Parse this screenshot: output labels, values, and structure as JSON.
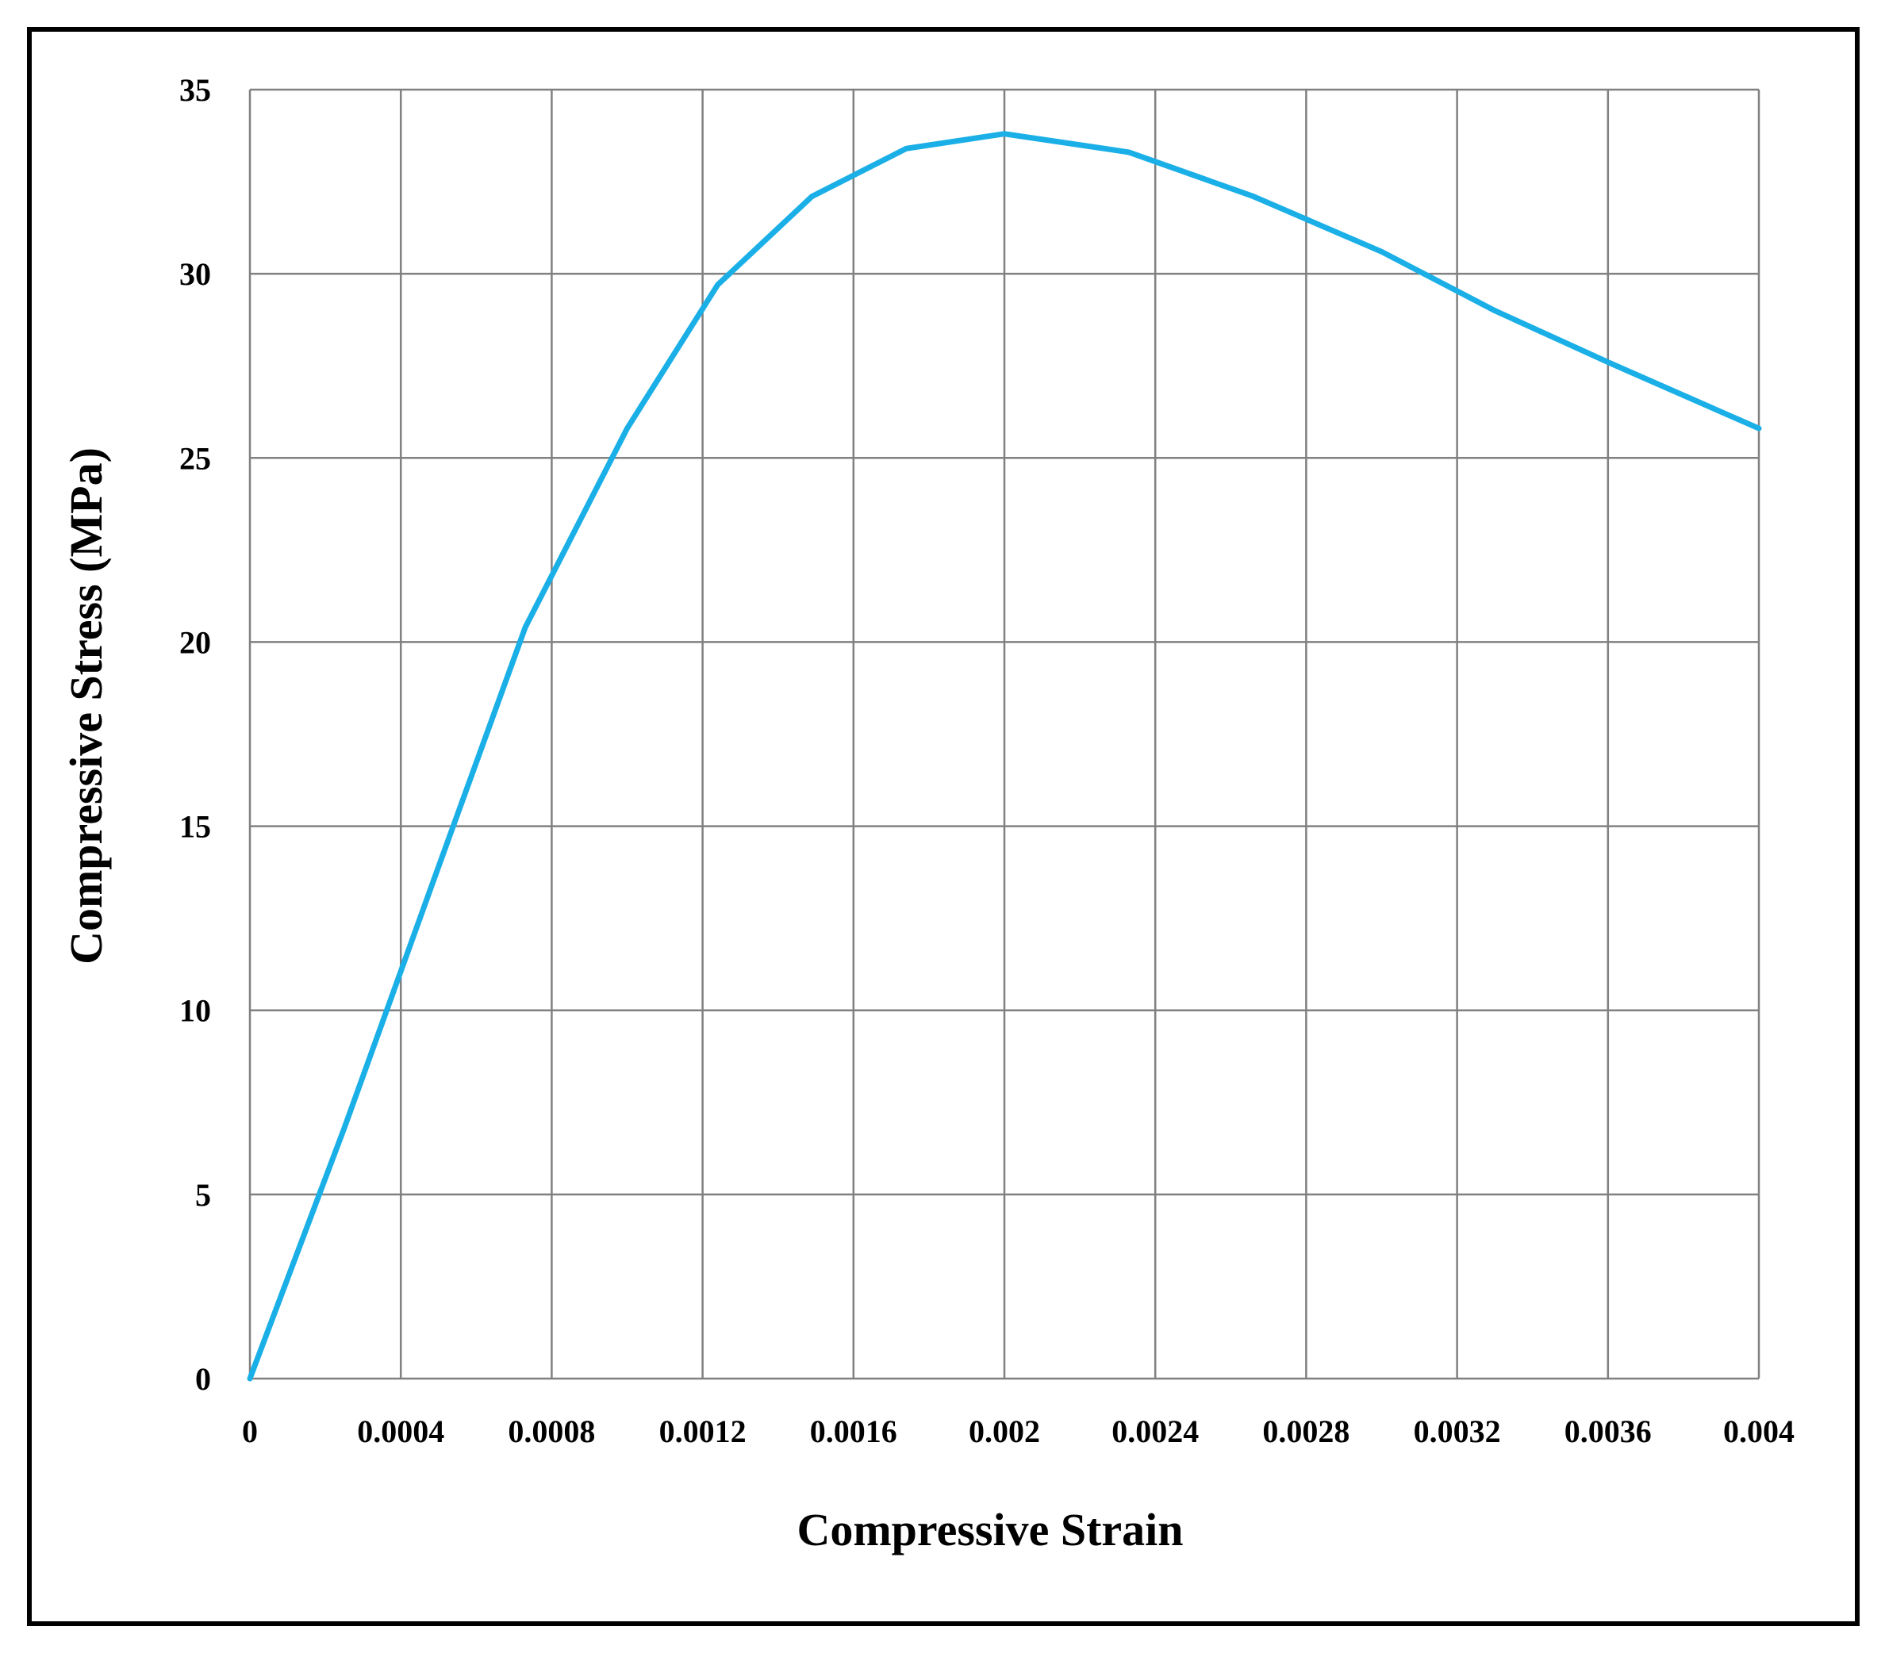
{
  "chart_data": {
    "type": "line",
    "title": "",
    "xlabel": "Compressive Strain",
    "ylabel": "Compressive Stress  (MPa)",
    "xlim": [
      0,
      0.004
    ],
    "ylim": [
      0,
      35
    ],
    "x_ticks": [
      0,
      0.0004,
      0.0008,
      0.0012,
      0.0016,
      0.002,
      0.0024,
      0.0028,
      0.0032,
      0.0036,
      0.004
    ],
    "x_tick_labels": [
      "0",
      "0.0004",
      "0.0008",
      "0.0012",
      "0.0016",
      "0.002",
      "0.0024",
      "0.0028",
      "0.0032",
      "0.0036",
      "0.004"
    ],
    "y_ticks": [
      0,
      5,
      10,
      15,
      20,
      25,
      30,
      35
    ],
    "y_tick_labels": [
      "0",
      "5",
      "10",
      "15",
      "20",
      "25",
      "30",
      "35"
    ],
    "grid": true,
    "legend": "none",
    "colors": {
      "line": "#1AAFE6",
      "grid": "#808080",
      "frame": "#000000"
    },
    "series": [
      {
        "x": [
          0,
          0.00025,
          0.0005,
          0.00073,
          0.001,
          0.00124,
          0.00149,
          0.00174,
          0.002,
          0.00233,
          0.00266,
          0.003,
          0.0033,
          0.0036,
          0.004
        ],
        "y": [
          0,
          6.8,
          13.9,
          20.4,
          25.8,
          29.7,
          32.1,
          33.4,
          33.8,
          33.3,
          32.1,
          30.6,
          29.0,
          27.6,
          25.8
        ]
      }
    ]
  }
}
